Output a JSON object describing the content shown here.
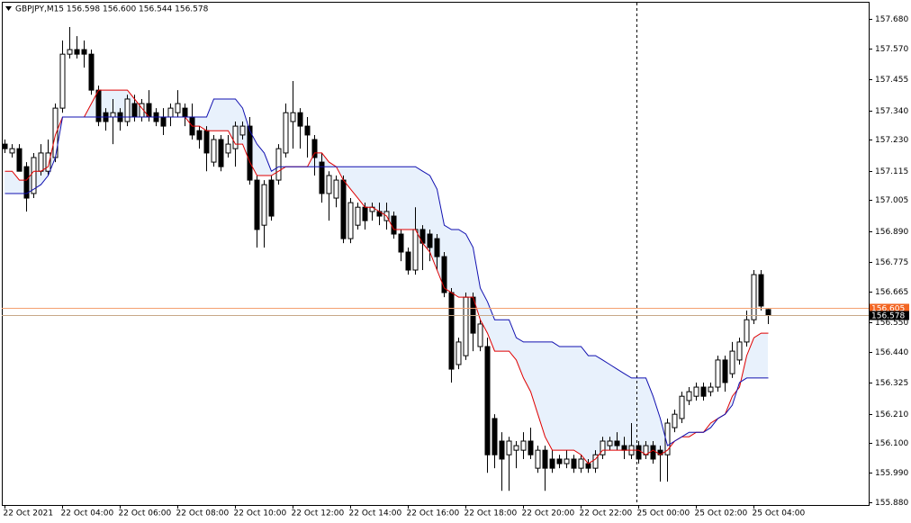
{
  "chart_data": {
    "type": "candlestick",
    "title": "GBPJPY,M15  156.598 156.600 156.544 156.578",
    "categories": [
      "22 Oct 2021",
      null,
      null,
      null,
      null,
      null,
      null,
      null,
      "22 Oct 04:00",
      null,
      null,
      null,
      null,
      null,
      null,
      null,
      "22 Oct 06:00",
      null,
      null,
      null,
      null,
      null,
      null,
      null,
      "22 Oct 08:00",
      null,
      null,
      null,
      null,
      null,
      null,
      null,
      "22 Oct 10:00",
      null,
      null,
      null,
      null,
      null,
      null,
      null,
      "22 Oct 12:00",
      null,
      null,
      null,
      null,
      null,
      null,
      null,
      "22 Oct 14:00",
      null,
      null,
      null,
      null,
      null,
      null,
      null,
      "22 Oct 16:00",
      null,
      null,
      null,
      null,
      null,
      null,
      null,
      "22 Oct 18:00",
      null,
      null,
      null,
      null,
      null,
      null,
      null,
      "22 Oct 20:00",
      null,
      null,
      null,
      null,
      null,
      null,
      null,
      "22 Oct 22:00",
      null,
      null,
      null,
      null,
      null,
      null,
      null,
      "25 Oct 00:00",
      null,
      null,
      null,
      null,
      null,
      null,
      null,
      "25 Oct 02:00",
      null,
      null,
      null,
      null,
      null,
      null,
      null,
      "25 Oct 04:00",
      null,
      null
    ],
    "open": [
      157.214,
      157.181,
      157.197,
      157.13,
      157.03,
      157.113,
      157.113,
      157.164,
      157.348,
      157.549,
      157.566,
      157.566,
      157.549,
      157.415,
      157.331,
      157.315,
      157.331,
      157.298,
      157.365,
      157.315,
      157.365,
      157.331,
      157.315,
      157.315,
      157.331,
      157.348,
      157.315,
      157.264,
      157.264,
      157.147,
      157.231,
      157.181,
      157.197,
      157.248,
      157.281,
      157.08,
      156.912,
      157.08,
      157.08,
      157.181,
      157.298,
      157.331,
      157.281,
      157.231,
      157.147,
      157.03,
      157.013,
      157.08,
      156.862,
      156.912,
      156.979,
      156.963,
      156.963,
      156.929,
      156.946,
      156.879,
      156.812,
      156.745,
      156.896,
      156.879,
      156.862,
      156.795,
      156.661,
      156.393,
      156.426,
      156.644,
      156.46,
      156.46,
      156.192,
      156.108,
      156.057,
      156.074,
      156.074,
      156.108,
      156.007,
      156.074,
      156.041,
      156.041,
      156.024,
      156.041,
      156.007,
      156.024,
      156.007,
      156.057,
      156.091,
      156.108,
      156.091,
      156.057,
      156.091,
      156.057,
      156.091,
      156.074,
      156.057,
      156.158,
      156.192,
      156.259,
      156.275,
      156.309,
      156.292,
      156.309,
      156.41,
      156.359,
      156.41,
      156.477,
      156.56,
      156.728,
      156.598
    ],
    "high": [
      157.231,
      157.214,
      157.214,
      157.147,
      157.181,
      157.214,
      157.231,
      157.365,
      157.6,
      157.65,
      157.616,
      157.6,
      157.566,
      157.432,
      157.348,
      157.382,
      157.348,
      157.398,
      157.398,
      157.382,
      157.415,
      157.348,
      157.348,
      157.365,
      157.415,
      157.365,
      157.365,
      157.281,
      157.281,
      157.248,
      157.248,
      157.248,
      157.298,
      157.298,
      157.315,
      157.097,
      157.08,
      157.097,
      157.214,
      157.365,
      157.449,
      157.348,
      157.315,
      157.248,
      157.181,
      157.113,
      157.097,
      157.097,
      157.013,
      156.996,
      156.996,
      156.996,
      156.996,
      156.996,
      156.963,
      156.896,
      156.829,
      156.979,
      156.912,
      156.896,
      156.879,
      156.812,
      156.678,
      156.493,
      156.661,
      156.661,
      156.56,
      156.493,
      156.208,
      156.141,
      156.124,
      156.108,
      156.141,
      156.158,
      156.091,
      156.091,
      156.074,
      156.057,
      156.074,
      156.057,
      156.057,
      156.041,
      156.074,
      156.124,
      156.124,
      156.141,
      156.124,
      156.175,
      156.108,
      156.108,
      156.108,
      156.091,
      156.192,
      156.225,
      156.292,
      156.309,
      156.326,
      156.326,
      156.326,
      156.426,
      156.426,
      156.477,
      156.493,
      156.594,
      156.745,
      156.745,
      156.6
    ],
    "low": [
      157.181,
      157.164,
      157.113,
      156.963,
      157.013,
      157.097,
      157.097,
      157.147,
      157.331,
      157.533,
      157.533,
      157.499,
      157.398,
      157.281,
      157.264,
      157.214,
      157.264,
      157.281,
      157.298,
      157.298,
      157.298,
      157.281,
      157.248,
      157.281,
      157.315,
      157.281,
      157.231,
      157.197,
      157.113,
      157.13,
      157.113,
      157.164,
      157.13,
      157.231,
      157.063,
      156.829,
      156.829,
      156.929,
      157.063,
      157.164,
      157.197,
      157.197,
      157.164,
      157.097,
      156.996,
      156.929,
      156.979,
      156.845,
      156.845,
      156.896,
      156.896,
      156.929,
      156.912,
      156.896,
      156.862,
      156.778,
      156.728,
      156.728,
      156.745,
      156.778,
      156.745,
      156.644,
      156.326,
      156.376,
      156.41,
      156.443,
      156.443,
      155.99,
      156.007,
      155.923,
      155.923,
      156.007,
      156.041,
      156.041,
      155.99,
      155.923,
      155.99,
      156.007,
      156.007,
      155.99,
      155.99,
      155.99,
      155.99,
      156.041,
      156.074,
      156.074,
      156.041,
      156.041,
      156.024,
      156.041,
      156.024,
      155.957,
      155.957,
      156.141,
      156.175,
      156.242,
      156.259,
      156.259,
      156.275,
      156.292,
      156.292,
      156.343,
      156.393,
      156.46,
      156.544,
      156.594,
      156.544
    ],
    "close": [
      157.197,
      157.197,
      157.113,
      157.013,
      157.164,
      157.181,
      157.181,
      157.348,
      157.549,
      157.566,
      157.549,
      157.549,
      157.415,
      157.298,
      157.298,
      157.331,
      157.298,
      157.382,
      157.315,
      157.365,
      157.315,
      157.298,
      157.281,
      157.348,
      157.365,
      157.315,
      157.248,
      157.231,
      157.181,
      157.231,
      157.13,
      157.214,
      157.281,
      157.281,
      157.08,
      156.896,
      157.063,
      156.946,
      157.197,
      157.331,
      157.331,
      157.281,
      157.248,
      157.164,
      157.03,
      157.097,
      157.08,
      156.862,
      156.996,
      156.979,
      156.929,
      156.979,
      156.946,
      156.963,
      156.879,
      156.812,
      156.745,
      156.896,
      156.845,
      156.829,
      156.795,
      156.661,
      156.376,
      156.477,
      156.644,
      156.51,
      156.544,
      156.057,
      156.057,
      156.041,
      156.108,
      156.091,
      156.108,
      156.057,
      156.074,
      156.007,
      156.007,
      156.024,
      156.041,
      156.007,
      156.041,
      156.007,
      156.057,
      156.108,
      156.108,
      156.091,
      156.074,
      156.091,
      156.041,
      156.091,
      156.041,
      156.057,
      156.175,
      156.208,
      156.275,
      156.292,
      156.309,
      156.275,
      156.309,
      156.41,
      156.326,
      156.443,
      156.477,
      156.56,
      156.728,
      156.611,
      156.578
    ],
    "up_color": "#ffffff",
    "down_color": "#000000",
    "lines": [
      {
        "color": "#e00000",
        "values": [
          157.113,
          157.113,
          157.08,
          157.08,
          157.113,
          157.113,
          157.13,
          157.248,
          157.315,
          157.315,
          157.315,
          157.315,
          157.365,
          157.415,
          157.415,
          157.415,
          157.415,
          157.415,
          157.382,
          157.348,
          157.315,
          157.315,
          157.315,
          157.315,
          157.315,
          157.315,
          157.281,
          157.281,
          157.264,
          157.264,
          157.264,
          157.264,
          157.214,
          157.214,
          157.147,
          157.097,
          157.097,
          157.097,
          157.113,
          157.13,
          157.13,
          157.13,
          157.13,
          157.181,
          157.181,
          157.147,
          157.13,
          157.08,
          157.046,
          157.013,
          156.979,
          156.979,
          156.963,
          156.946,
          156.896,
          156.896,
          156.896,
          156.896,
          156.845,
          156.812,
          156.745,
          156.678,
          156.661,
          156.644,
          156.644,
          156.644,
          156.56,
          156.51,
          156.443,
          156.443,
          156.443,
          156.41,
          156.343,
          156.292,
          156.208,
          156.124,
          156.074,
          156.074,
          156.074,
          156.074,
          156.057,
          156.024,
          156.041,
          156.074,
          156.074,
          156.074,
          156.074,
          156.074,
          156.074,
          156.057,
          156.074,
          156.057,
          156.074,
          156.108,
          156.124,
          156.124,
          156.141,
          156.141,
          156.175,
          156.192,
          156.208,
          156.275,
          156.309,
          156.426,
          156.493,
          156.51,
          156.51
        ]
      },
      {
        "color": "#1010b0",
        "values": [
          157.03,
          157.03,
          157.03,
          157.03,
          157.046,
          157.063,
          157.097,
          157.164,
          157.315,
          157.315,
          157.315,
          157.315,
          157.315,
          157.315,
          157.315,
          157.315,
          157.315,
          157.315,
          157.315,
          157.315,
          157.315,
          157.315,
          157.315,
          157.315,
          157.315,
          157.315,
          157.315,
          157.315,
          157.315,
          157.382,
          157.382,
          157.382,
          157.382,
          157.348,
          157.264,
          157.214,
          157.181,
          157.113,
          157.13,
          157.13,
          157.13,
          157.13,
          157.13,
          157.13,
          157.13,
          157.13,
          157.13,
          157.13,
          157.13,
          157.13,
          157.13,
          157.13,
          157.13,
          157.13,
          157.13,
          157.13,
          157.13,
          157.13,
          157.113,
          157.097,
          157.046,
          156.912,
          156.896,
          156.896,
          156.879,
          156.829,
          156.678,
          156.627,
          156.56,
          156.56,
          156.56,
          156.493,
          156.477,
          156.477,
          156.477,
          156.477,
          156.477,
          156.46,
          156.46,
          156.46,
          156.46,
          156.426,
          156.426,
          156.41,
          156.393,
          156.376,
          156.359,
          156.343,
          156.343,
          156.343,
          156.275,
          156.192,
          156.091,
          156.108,
          156.124,
          156.141,
          156.141,
          156.141,
          156.158,
          156.192,
          156.208,
          156.242,
          156.326,
          156.343,
          156.343,
          156.343,
          156.343
        ]
      }
    ],
    "cloud_color": "#e8f1fc",
    "price_lines": [
      {
        "value": 156.605,
        "color": "#f26522",
        "line_color": "#f4a070"
      },
      {
        "value": 156.578,
        "color": "#000000",
        "line_color": "#c8a888"
      }
    ],
    "ylim": [
      155.87,
      157.744
    ],
    "yticks": [
      {
        "value": 157.68,
        "label": "157.680"
      },
      {
        "value": 157.57,
        "label": "157.570"
      },
      157.455,
      {
        "value": 157.34,
        "label": "157.340"
      },
      {
        "value": 157.23,
        "label": "157.230"
      },
      157.115,
      157.005,
      {
        "value": 156.89,
        "label": "156.890"
      },
      156.775,
      156.665,
      {
        "value": 156.55,
        "label": "156.550"
      },
      {
        "value": 156.44,
        "label": "156.440"
      },
      156.325,
      {
        "value": 156.21,
        "label": "156.210"
      },
      {
        "value": 156.1,
        "label": "156.100"
      },
      {
        "value": 155.99,
        "label": "155.990"
      },
      {
        "value": 155.88,
        "label": "155.880"
      }
    ]
  }
}
